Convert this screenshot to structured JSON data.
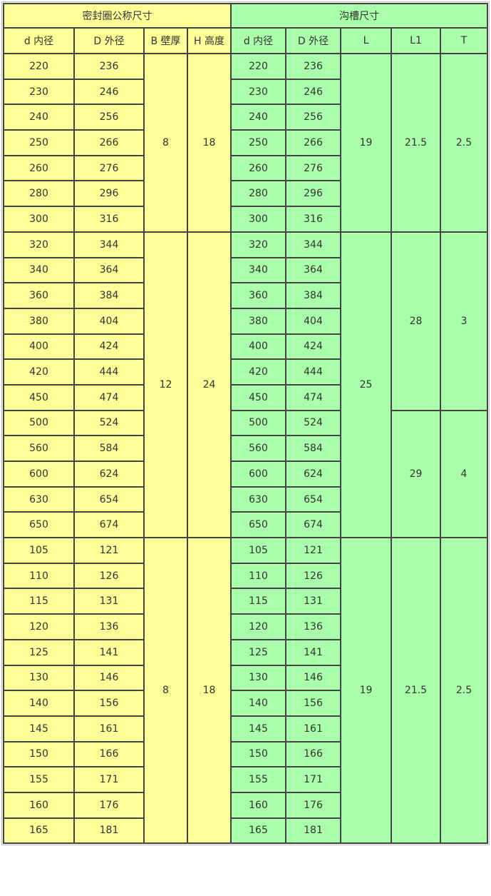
{
  "header": {
    "seal_title": "密封圈公称尺寸",
    "groove_title": "沟槽尺寸",
    "seal_cols": [
      "d 内径",
      "D 外径",
      "B 壁厚",
      "H 高度"
    ],
    "groove_cols": [
      "d 内径",
      "D 外径",
      "L",
      "L1",
      "T"
    ]
  },
  "colors": {
    "seal_bg": "#ffff99",
    "groove_bg": "#aaffaa",
    "border": "#444444"
  },
  "groups": [
    {
      "B": "8",
      "H": "18",
      "L": "19",
      "sub": [
        {
          "L1": "21.5",
          "T": "2.5",
          "count": 7
        }
      ],
      "rows": [
        [
          "220",
          "236"
        ],
        [
          "230",
          "246"
        ],
        [
          "240",
          "256"
        ],
        [
          "250",
          "266"
        ],
        [
          "260",
          "276"
        ],
        [
          "280",
          "296"
        ],
        [
          "300",
          "316"
        ]
      ]
    },
    {
      "B": "12",
      "H": "24",
      "L": "25",
      "sub": [
        {
          "L1": "28",
          "T": "3",
          "count": 7
        },
        {
          "L1": "29",
          "T": "4",
          "count": 5
        }
      ],
      "rows": [
        [
          "320",
          "344"
        ],
        [
          "340",
          "364"
        ],
        [
          "360",
          "384"
        ],
        [
          "380",
          "404"
        ],
        [
          "400",
          "424"
        ],
        [
          "420",
          "444"
        ],
        [
          "450",
          "474"
        ],
        [
          "500",
          "524"
        ],
        [
          "560",
          "584"
        ],
        [
          "600",
          "624"
        ],
        [
          "630",
          "654"
        ],
        [
          "650",
          "674"
        ]
      ]
    },
    {
      "B": "8",
      "H": "18",
      "L": "19",
      "sub": [
        {
          "L1": "21.5",
          "T": "2.5",
          "count": 12
        }
      ],
      "rows": [
        [
          "105",
          "121"
        ],
        [
          "110",
          "126"
        ],
        [
          "115",
          "131"
        ],
        [
          "120",
          "136"
        ],
        [
          "125",
          "141"
        ],
        [
          "130",
          "146"
        ],
        [
          "140",
          "156"
        ],
        [
          "145",
          "161"
        ],
        [
          "150",
          "166"
        ],
        [
          "155",
          "171"
        ],
        [
          "160",
          "176"
        ],
        [
          "165",
          "181"
        ]
      ]
    }
  ]
}
